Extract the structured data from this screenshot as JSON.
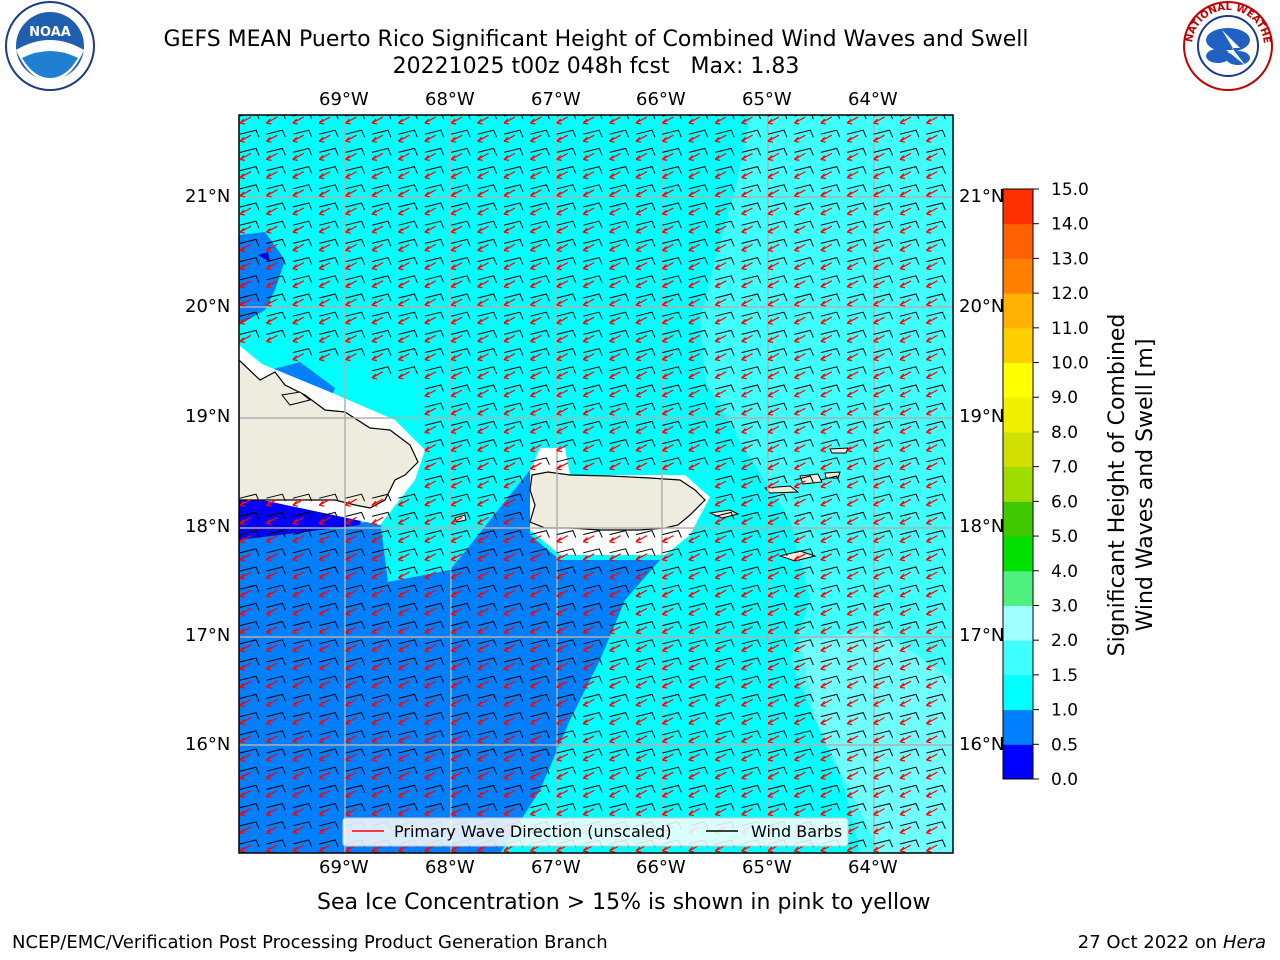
{
  "title": {
    "line1": "GEFS MEAN Puerto Rico Significant Height of Combined Wind Waves and Swell",
    "line2": "20221025 t00z 048h fcst   Max: 1.83"
  },
  "logos": {
    "left": "NOAA",
    "right": "NATIONAL WEATHER SERVICE"
  },
  "map": {
    "lon_labels": [
      "69°W",
      "68°W",
      "67°W",
      "66°W",
      "65°W",
      "64°W"
    ],
    "lat_labels": [
      "21°N",
      "20°N",
      "19°N",
      "18°N",
      "17°N",
      "16°N"
    ],
    "legend": {
      "wave_direction": "Primary Wave Direction (unscaled)",
      "wind_barbs": "Wind Barbs"
    },
    "colors": {
      "land": "#eeecdf",
      "level_0_0.5": "#0000ff",
      "level_0.5_1.0": "#0080ff",
      "level_1.0_1.5": "#00ffff",
      "level_1.5_2.0": "#40ffff",
      "level_2.0_3.0": "#a0ffff",
      "wave_arrow": "#ff0000",
      "wind_barb": "#000000"
    }
  },
  "colorbar": {
    "label_line1": "Significant Height of Combined",
    "label_line2": "Wind Waves and Swell [m]",
    "ticks": [
      "0.0",
      "0.5",
      "1.0",
      "1.5",
      "2.0",
      "3.0",
      "4.0",
      "5.0",
      "6.0",
      "7.0",
      "8.0",
      "9.0",
      "10.0",
      "11.0",
      "12.0",
      "13.0",
      "14.0",
      "15.0"
    ],
    "colors": [
      "#0000ff",
      "#0080ff",
      "#00ffff",
      "#40ffff",
      "#a0ffff",
      "#50f080",
      "#00e000",
      "#40c800",
      "#a0dc00",
      "#d0e000",
      "#f0f000",
      "#ffff00",
      "#ffd000",
      "#ffb000",
      "#ff8000",
      "#ff6000",
      "#ff3000"
    ]
  },
  "caption": "Sea Ice Concentration > 15% is shown in pink to yellow",
  "footer": {
    "left": "NCEP/EMC/Verification Post Processing Product Generation Branch",
    "right_date": "27 Oct 2022 on",
    "right_host": "Hera"
  }
}
